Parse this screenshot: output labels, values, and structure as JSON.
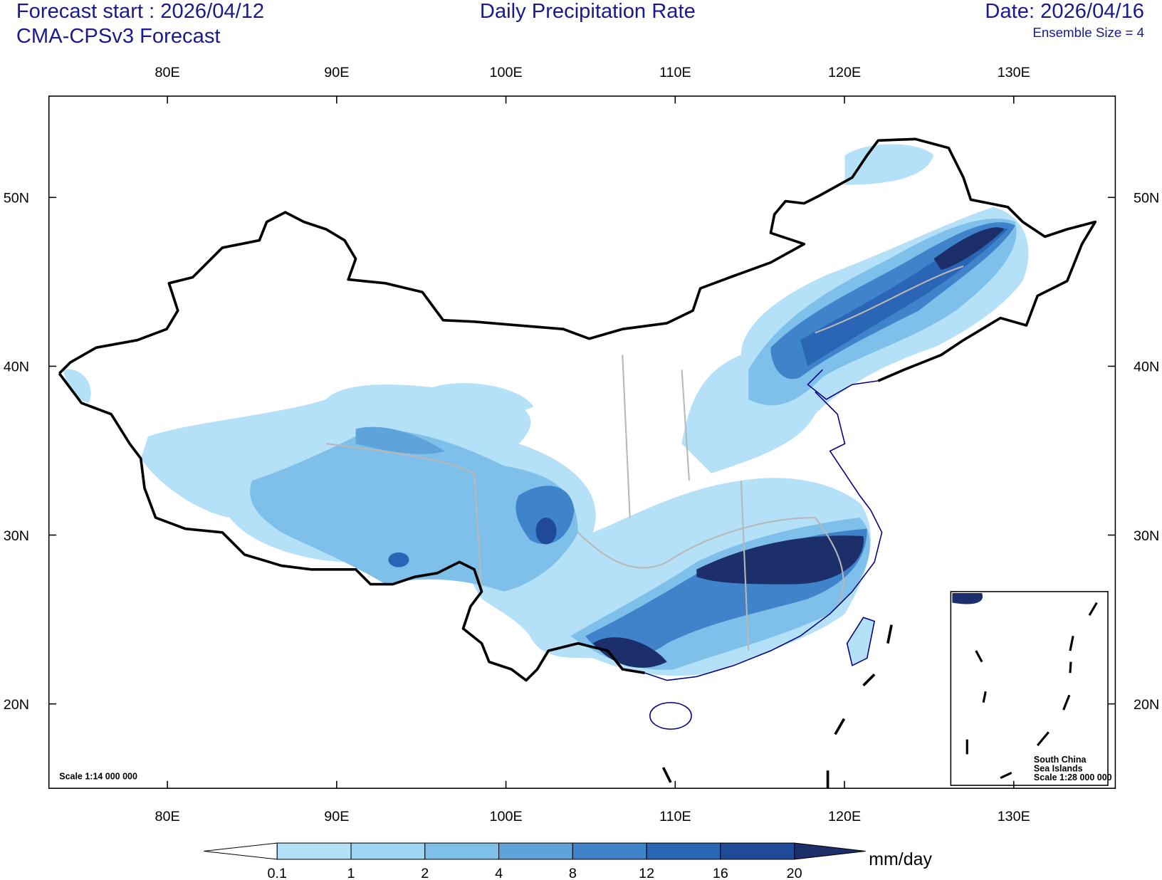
{
  "header": {
    "forecast_start": "Forecast start : 2026/04/12",
    "model": "CMA-CPSv3 Forecast",
    "title": "Daily Precipitation Rate",
    "date": "Date: 2026/04/16",
    "ensemble": "Ensemble Size = 4"
  },
  "map": {
    "xlim": [
      73,
      136
    ],
    "ylim": [
      15,
      56
    ],
    "xticks": [
      {
        "value": 80,
        "label": "80E"
      },
      {
        "value": 90,
        "label": "90E"
      },
      {
        "value": 100,
        "label": "100E"
      },
      {
        "value": 110,
        "label": "110E"
      },
      {
        "value": 120,
        "label": "120E"
      },
      {
        "value": 130,
        "label": "130E"
      }
    ],
    "yticks": [
      {
        "value": 20,
        "label": "20N"
      },
      {
        "value": 30,
        "label": "30N"
      },
      {
        "value": 40,
        "label": "40N"
      },
      {
        "value": 50,
        "label": "50N"
      }
    ],
    "scale": "Scale 1:14 000 000"
  },
  "inset": {
    "lines": [
      "South China",
      "Sea Islands",
      "Scale 1:28 000 000"
    ]
  },
  "colorbar": {
    "levels": [
      0.1,
      1,
      2,
      4,
      8,
      12,
      16,
      20
    ],
    "colors": [
      "#ffffff",
      "#b4e1f7",
      "#9dd6f3",
      "#7fc0ea",
      "#5fa3db",
      "#3f84cb",
      "#2b65b5",
      "#1f4a99",
      "#1c2f6b"
    ],
    "units": "mm/day"
  }
}
